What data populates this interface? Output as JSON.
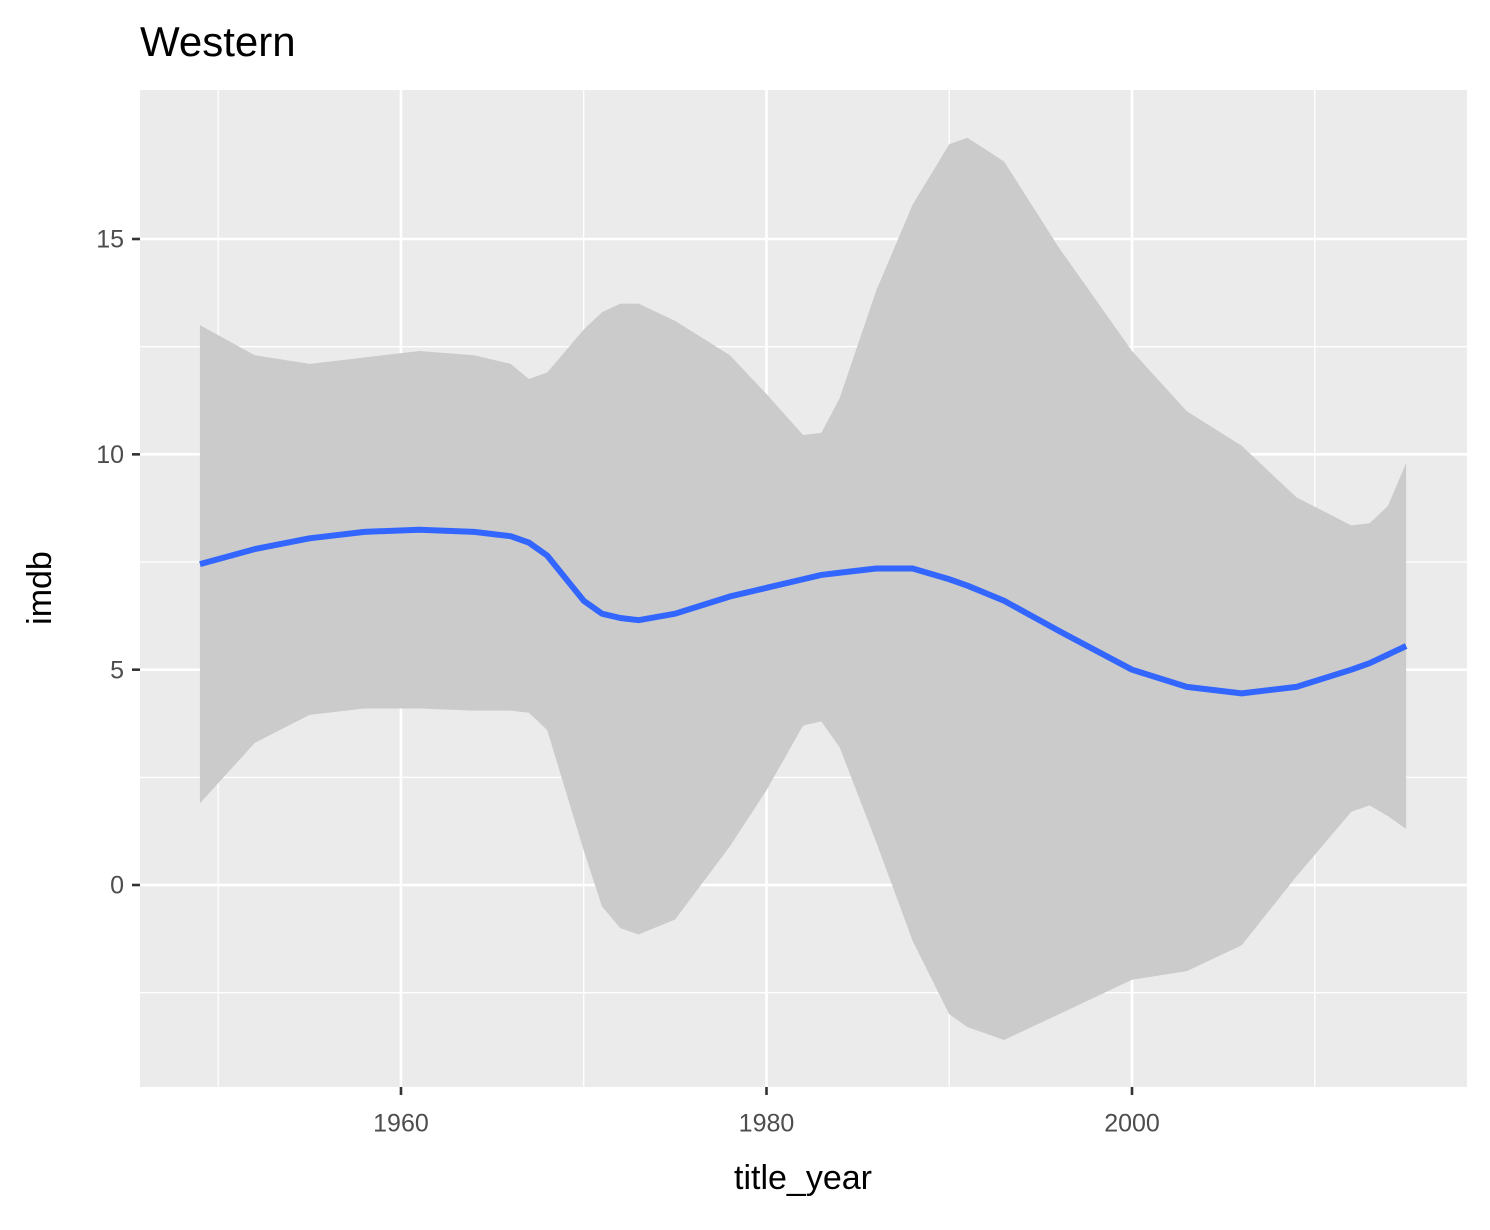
{
  "chart_data": {
    "type": "line",
    "title": "Western",
    "x_label": "title_year",
    "y_label": "imdb",
    "x": [
      1949,
      1952,
      1955,
      1958,
      1961,
      1964,
      1966,
      1967,
      1968,
      1970,
      1971,
      1972,
      1973,
      1975,
      1978,
      1980,
      1982,
      1983,
      1984,
      1986,
      1988,
      1990,
      1991,
      1993,
      1996,
      2000,
      2003,
      2006,
      2009,
      2012,
      2013,
      2014,
      2015
    ],
    "values": [
      7.45,
      7.8,
      8.05,
      8.2,
      8.25,
      8.2,
      8.1,
      7.95,
      7.65,
      6.6,
      6.3,
      6.2,
      6.15,
      6.3,
      6.7,
      6.9,
      7.1,
      7.2,
      7.25,
      7.35,
      7.35,
      7.1,
      6.95,
      6.6,
      5.9,
      5.0,
      4.6,
      4.45,
      4.6,
      5.0,
      5.15,
      5.35,
      5.55
    ],
    "ymin": [
      1.9,
      3.3,
      3.95,
      4.1,
      4.1,
      4.05,
      4.05,
      4.0,
      3.6,
      0.8,
      -0.5,
      -1.0,
      -1.15,
      -0.8,
      0.9,
      2.2,
      3.7,
      3.8,
      3.2,
      1.0,
      -1.3,
      -3.0,
      -3.3,
      -3.6,
      -3.0,
      -2.2,
      -2.0,
      -1.4,
      0.2,
      1.7,
      1.85,
      1.6,
      1.3
    ],
    "ymax": [
      13.0,
      12.3,
      12.1,
      12.25,
      12.4,
      12.3,
      12.1,
      11.75,
      11.9,
      12.9,
      13.3,
      13.5,
      13.5,
      13.1,
      12.3,
      11.4,
      10.45,
      10.5,
      11.3,
      13.8,
      15.8,
      17.2,
      17.35,
      16.8,
      14.8,
      12.4,
      11.0,
      10.2,
      9.0,
      8.35,
      8.4,
      8.8,
      9.8
    ],
    "color": "#3366FF",
    "band_color": "#cbcbcb",
    "xlim": [
      1945.72,
      2018.33
    ],
    "xticks": [
      1960,
      1980,
      2000
    ],
    "xminor": [
      1950,
      1970,
      1990,
      2010
    ],
    "ylim": [
      -4.69,
      18.46
    ],
    "yticks": [
      0,
      5,
      10,
      15
    ],
    "yminor": [
      -2.5,
      2.5,
      7.5,
      12.5
    ],
    "grid": true
  }
}
